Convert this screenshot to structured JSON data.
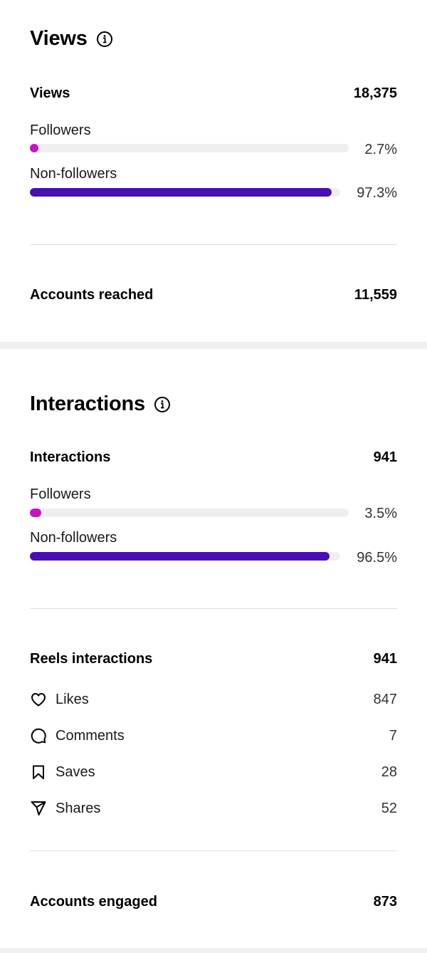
{
  "views": {
    "title": "Views",
    "total_label": "Views",
    "total_value": "18,375",
    "followers_label": "Followers",
    "followers_pct": "2.7%",
    "followers_fraction": 0.027,
    "non_followers_label": "Non-followers",
    "non_followers_pct": "97.3%",
    "non_followers_fraction": 0.973,
    "accounts_reached_label": "Accounts reached",
    "accounts_reached_value": "11,559"
  },
  "interactions": {
    "title": "Interactions",
    "total_label": "Interactions",
    "total_value": "941",
    "followers_label": "Followers",
    "followers_pct": "3.5%",
    "followers_fraction": 0.035,
    "non_followers_label": "Non-followers",
    "non_followers_pct": "96.5%",
    "non_followers_fraction": 0.965,
    "reels_label": "Reels interactions",
    "reels_value": "941",
    "metrics": [
      {
        "icon": "heart-icon",
        "label": "Likes",
        "value": "847"
      },
      {
        "icon": "comment-icon",
        "label": "Comments",
        "value": "7"
      },
      {
        "icon": "bookmark-icon",
        "label": "Saves",
        "value": "28"
      },
      {
        "icon": "share-icon",
        "label": "Shares",
        "value": "52"
      }
    ],
    "accounts_engaged_label": "Accounts engaged",
    "accounts_engaged_value": "873"
  },
  "colors": {
    "followers_bar": "#c613c6",
    "non_followers_bar": "#4a0fb0",
    "track": "#efefef"
  }
}
